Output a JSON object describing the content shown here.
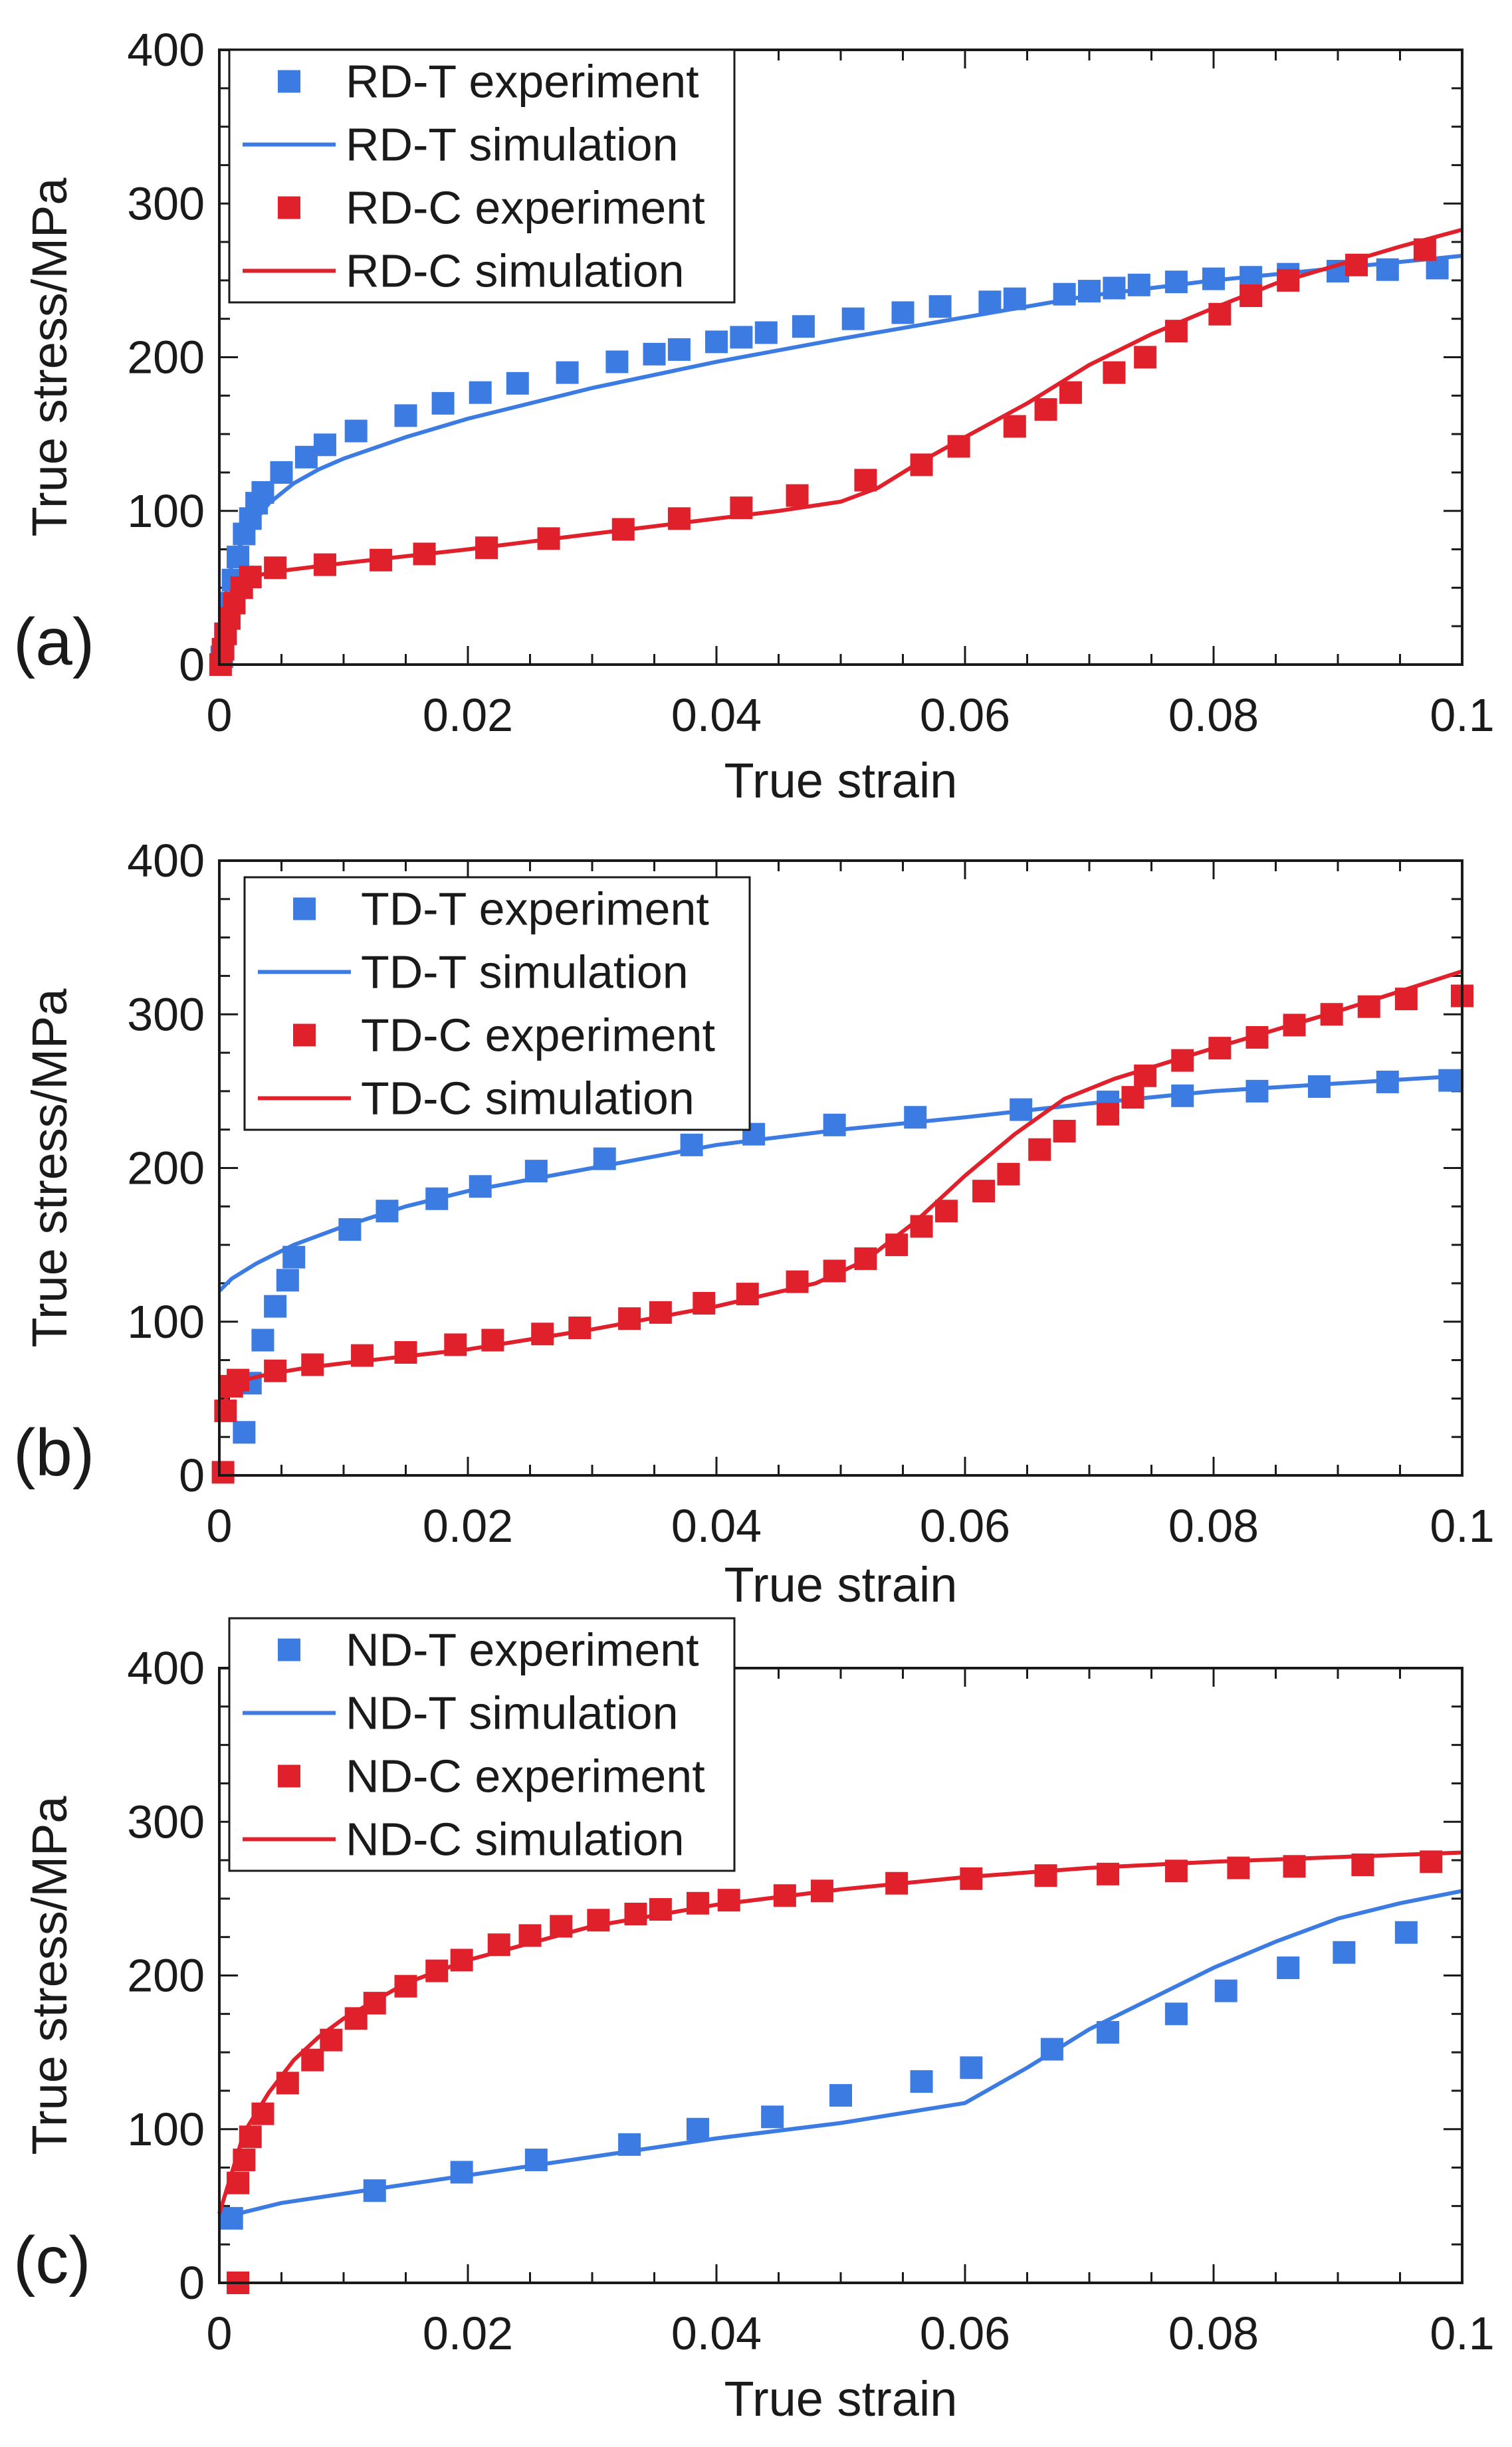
{
  "colors": {
    "tension": "#3b7be2",
    "compression": "#e0202a",
    "axis": "#1a1a1a"
  },
  "chart_data": [
    {
      "type": "scatter",
      "panel_label": "(a)",
      "xlabel": "True strain",
      "ylabel": "True stress/MPa",
      "xlim": [
        0,
        0.1
      ],
      "ylim": [
        0,
        400
      ],
      "x_ticks": [
        "0",
        "0.02",
        "0.04",
        "0.06",
        "0.08",
        "0.1"
      ],
      "y_ticks": [
        "0",
        "100",
        "200",
        "300",
        "400"
      ],
      "legend": [
        {
          "label": "RD-T experiment",
          "kind": "marker",
          "color": "#3b7be2"
        },
        {
          "label": "RD-T simulation",
          "kind": "line",
          "color": "#3b7be2"
        },
        {
          "label": "RD-C experiment",
          "kind": "marker",
          "color": "#e0202a"
        },
        {
          "label": "RD-C simulation",
          "kind": "line",
          "color": "#e0202a"
        }
      ],
      "series": [
        {
          "name": "RD-T experiment",
          "kind": "marker",
          "color": "#3b7be2",
          "x": [
            0.0002,
            0.0005,
            0.0008,
            0.0011,
            0.0015,
            0.002,
            0.0025,
            0.003,
            0.0035,
            0.005,
            0.007,
            0.0085,
            0.011,
            0.015,
            0.018,
            0.021,
            0.024,
            0.028,
            0.032,
            0.035,
            0.037,
            0.04,
            0.042,
            0.044,
            0.047,
            0.051,
            0.055,
            0.058,
            0.062,
            0.064,
            0.068,
            0.07,
            0.072,
            0.074,
            0.077,
            0.08,
            0.083,
            0.086,
            0.09,
            0.094,
            0.098
          ],
          "y": [
            5,
            20,
            40,
            55,
            70,
            85,
            95,
            105,
            112,
            125,
            135,
            143,
            152,
            162,
            170,
            177,
            183,
            190,
            197,
            202,
            205,
            210,
            213,
            216,
            220,
            225,
            229,
            233,
            236,
            238,
            241,
            243,
            245,
            247,
            249,
            251,
            252,
            254,
            256,
            257,
            258
          ]
        },
        {
          "name": "RD-T simulation",
          "kind": "line",
          "color": "#3b7be2",
          "x": [
            0,
            0.0005,
            0.001,
            0.0015,
            0.002,
            0.003,
            0.004,
            0.006,
            0.008,
            0.01,
            0.015,
            0.02,
            0.03,
            0.04,
            0.05,
            0.06,
            0.07,
            0.08,
            0.09,
            0.1
          ],
          "y": [
            0,
            45,
            65,
            75,
            82,
            95,
            105,
            118,
            127,
            134,
            148,
            160,
            180,
            197,
            212,
            226,
            240,
            250,
            258,
            266
          ]
        },
        {
          "name": "RD-C experiment",
          "kind": "marker",
          "color": "#e0202a",
          "x": [
            0.0001,
            0.0003,
            0.0005,
            0.0008,
            0.0012,
            0.0018,
            0.0025,
            0.0045,
            0.0085,
            0.013,
            0.0165,
            0.0215,
            0.0265,
            0.0325,
            0.037,
            0.042,
            0.0465,
            0.052,
            0.0565,
            0.0595,
            0.064,
            0.0665,
            0.0685,
            0.072,
            0.0745,
            0.077,
            0.0805,
            0.083,
            0.086,
            0.0915,
            0.097
          ],
          "y": [
            0,
            10,
            20,
            30,
            40,
            50,
            57,
            63,
            65,
            68,
            72,
            76,
            82,
            88,
            95,
            102,
            110,
            120,
            130,
            142,
            155,
            166,
            177,
            190,
            200,
            217,
            228,
            240,
            250,
            260,
            270
          ]
        },
        {
          "name": "RD-C simulation",
          "kind": "line",
          "color": "#e0202a",
          "x": [
            0,
            0.0005,
            0.001,
            0.002,
            0.003,
            0.005,
            0.01,
            0.02,
            0.03,
            0.04,
            0.045,
            0.05,
            0.053,
            0.056,
            0.06,
            0.065,
            0.07,
            0.075,
            0.08,
            0.085,
            0.09,
            0.095,
            0.1
          ],
          "y": [
            0,
            35,
            48,
            55,
            58,
            61,
            66,
            75,
            85,
            95,
            100,
            106,
            115,
            130,
            148,
            170,
            195,
            215,
            232,
            248,
            260,
            272,
            283
          ]
        }
      ]
    },
    {
      "type": "scatter",
      "panel_label": "(b)",
      "xlabel": "True strain",
      "ylabel": "True stress/MPa",
      "xlim": [
        0,
        0.1
      ],
      "ylim": [
        0,
        400
      ],
      "x_ticks": [
        "0",
        "0.02",
        "0.04",
        "0.06",
        "0.08",
        "0.1"
      ],
      "y_ticks": [
        "0",
        "100",
        "200",
        "300",
        "400"
      ],
      "legend": [
        {
          "label": "TD-T experiment",
          "kind": "marker",
          "color": "#3b7be2"
        },
        {
          "label": "TD-T simulation",
          "kind": "line",
          "color": "#3b7be2"
        },
        {
          "label": "TD-C experiment",
          "kind": "marker",
          "color": "#e0202a"
        },
        {
          "label": "TD-C simulation",
          "kind": "line",
          "color": "#e0202a"
        }
      ],
      "series": [
        {
          "name": "TD-T experiment",
          "kind": "marker",
          "color": "#3b7be2",
          "x": [
            0.002,
            0.0025,
            0.0035,
            0.0045,
            0.0055,
            0.006,
            0.0105,
            0.0135,
            0.0175,
            0.021,
            0.0255,
            0.031,
            0.038,
            0.043,
            0.0495,
            0.056,
            0.0645,
            0.0715,
            0.0775,
            0.0835,
            0.0885,
            0.094,
            0.099
          ],
          "y": [
            28,
            60,
            88,
            110,
            127,
            142,
            160,
            172,
            180,
            188,
            198,
            206,
            215,
            222,
            228,
            233,
            238,
            243,
            247,
            250,
            253,
            256,
            257
          ]
        },
        {
          "name": "TD-T simulation",
          "kind": "line",
          "color": "#3b7be2",
          "x": [
            0,
            0.001,
            0.002,
            0.003,
            0.004,
            0.006,
            0.01,
            0.015,
            0.02,
            0.03,
            0.04,
            0.05,
            0.06,
            0.07,
            0.08,
            0.09,
            0.1
          ],
          "y": [
            120,
            128,
            133,
            138,
            142,
            150,
            162,
            175,
            185,
            200,
            215,
            225,
            233,
            242,
            250,
            255,
            260
          ]
        },
        {
          "name": "TD-C experiment",
          "kind": "marker",
          "color": "#e0202a",
          "x": [
            0.0003,
            0.0005,
            0.001,
            0.0015,
            0.0045,
            0.0075,
            0.0115,
            0.015,
            0.019,
            0.022,
            0.026,
            0.029,
            0.033,
            0.0355,
            0.039,
            0.0425,
            0.0465,
            0.0495,
            0.052,
            0.0545,
            0.0565,
            0.0585,
            0.0615,
            0.0635,
            0.066,
            0.068,
            0.0715,
            0.0735,
            0.0745,
            0.0775,
            0.0805,
            0.0835,
            0.0865,
            0.0895,
            0.0925,
            0.0955,
            0.1
          ],
          "y": [
            2,
            42,
            58,
            62,
            68,
            72,
            78,
            80,
            85,
            88,
            92,
            96,
            102,
            106,
            112,
            118,
            126,
            133,
            141,
            150,
            162,
            172,
            185,
            196,
            212,
            224,
            235,
            246,
            260,
            270,
            278,
            285,
            293,
            300,
            305,
            310,
            312
          ]
        },
        {
          "name": "TD-C simulation",
          "kind": "line",
          "color": "#e0202a",
          "x": [
            0,
            0.001,
            0.002,
            0.004,
            0.007,
            0.01,
            0.02,
            0.03,
            0.04,
            0.048,
            0.052,
            0.056,
            0.06,
            0.064,
            0.068,
            0.072,
            0.076,
            0.08,
            0.085,
            0.09,
            0.095,
            0.1
          ],
          "y": [
            40,
            58,
            62,
            66,
            70,
            73,
            82,
            95,
            110,
            125,
            140,
            165,
            195,
            222,
            245,
            258,
            268,
            278,
            290,
            302,
            315,
            328
          ]
        }
      ]
    },
    {
      "type": "scatter",
      "panel_label": "(c)",
      "xlabel": "True strain",
      "ylabel": "True stress/MPa",
      "xlim": [
        0,
        0.1
      ],
      "ylim": [
        0,
        400
      ],
      "x_ticks": [
        "0",
        "0.02",
        "0.04",
        "0.06",
        "0.08",
        "0.1"
      ],
      "y_ticks": [
        "0",
        "100",
        "200",
        "300",
        "400"
      ],
      "legend": [
        {
          "label": "ND-T experiment",
          "kind": "marker",
          "color": "#3b7be2"
        },
        {
          "label": "ND-T simulation",
          "kind": "line",
          "color": "#3b7be2"
        },
        {
          "label": "ND-C experiment",
          "kind": "marker",
          "color": "#e0202a"
        },
        {
          "label": "ND-C simulation",
          "kind": "line",
          "color": "#e0202a"
        }
      ],
      "series": [
        {
          "name": "ND-T experiment",
          "kind": "marker",
          "color": "#3b7be2",
          "x": [
            0.001,
            0.0125,
            0.0195,
            0.0255,
            0.033,
            0.0385,
            0.0445,
            0.05,
            0.0565,
            0.0605,
            0.067,
            0.0715,
            0.077,
            0.081,
            0.086,
            0.0905,
            0.0955
          ],
          "y": [
            42,
            60,
            72,
            80,
            90,
            100,
            108,
            122,
            131,
            140,
            152,
            163,
            175,
            190,
            205,
            215,
            228
          ]
        },
        {
          "name": "ND-T simulation",
          "kind": "line",
          "color": "#3b7be2",
          "x": [
            0,
            0.002,
            0.005,
            0.01,
            0.02,
            0.03,
            0.04,
            0.05,
            0.06,
            0.065,
            0.07,
            0.075,
            0.08,
            0.085,
            0.09,
            0.095,
            0.1
          ],
          "y": [
            40,
            46,
            52,
            58,
            70,
            82,
            94,
            104,
            117,
            140,
            165,
            185,
            205,
            222,
            237,
            247,
            255
          ]
        },
        {
          "name": "ND-C experiment",
          "kind": "marker",
          "color": "#e0202a",
          "x": [
            0.0015,
            0.0015,
            0.002,
            0.0025,
            0.0035,
            0.0055,
            0.0075,
            0.009,
            0.011,
            0.0125,
            0.015,
            0.0175,
            0.0195,
            0.0225,
            0.025,
            0.0275,
            0.0305,
            0.0335,
            0.0355,
            0.0385,
            0.041,
            0.0455,
            0.0485,
            0.0545,
            0.0605,
            0.0665,
            0.0715,
            0.077,
            0.082,
            0.0865,
            0.092,
            0.0975
          ],
          "y": [
            0,
            65,
            80,
            95,
            110,
            130,
            145,
            158,
            172,
            182,
            193,
            203,
            210,
            220,
            226,
            232,
            236,
            240,
            243,
            247,
            249,
            252,
            255,
            260,
            263,
            265,
            266,
            268,
            270,
            271,
            272,
            274
          ]
        },
        {
          "name": "ND-C simulation",
          "kind": "line",
          "color": "#e0202a",
          "x": [
            0,
            0.002,
            0.004,
            0.006,
            0.008,
            0.01,
            0.015,
            0.02,
            0.03,
            0.04,
            0.05,
            0.06,
            0.07,
            0.08,
            0.09,
            0.1
          ],
          "y": [
            45,
            98,
            124,
            145,
            160,
            172,
            195,
            210,
            232,
            246,
            256,
            264,
            270,
            274,
            277,
            280
          ]
        }
      ]
    }
  ]
}
